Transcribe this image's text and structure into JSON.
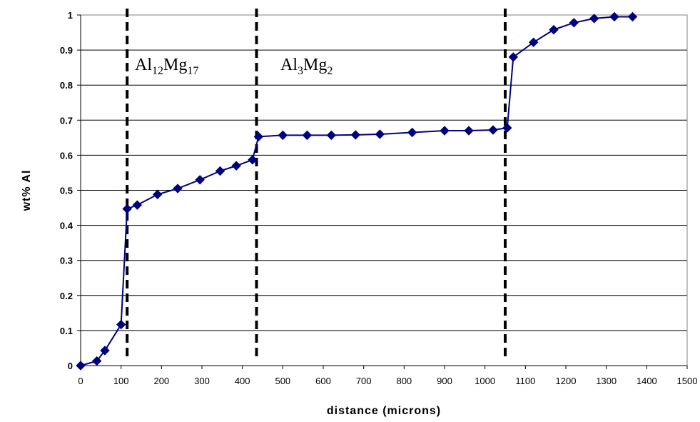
{
  "chart_data": {
    "type": "line",
    "xlabel": "distance (microns)",
    "ylabel": "wt% Al",
    "xlim": [
      0,
      1500
    ],
    "ylim": [
      0,
      1
    ],
    "x_ticks": [
      "0",
      "100",
      "200",
      "300",
      "400",
      "500",
      "600",
      "700",
      "800",
      "900",
      "1000",
      "1100",
      "1200",
      "1300",
      "1400",
      "1500"
    ],
    "y_ticks": [
      "0",
      "0.1",
      "0.2",
      "0.3",
      "0.4",
      "0.5",
      "0.6",
      "0.7",
      "0.8",
      "0.9",
      "1"
    ],
    "grid": "horizontal",
    "series": [
      {
        "color": "#00007f",
        "marker": "diamond",
        "x": [
          0,
          40,
          60,
          100,
          115,
          140,
          190,
          240,
          295,
          345,
          385,
          425,
          440,
          500,
          560,
          620,
          680,
          740,
          820,
          900,
          960,
          1020,
          1055,
          1070,
          1120,
          1170,
          1220,
          1270,
          1320,
          1365
        ],
        "y": [
          0,
          0.013,
          0.043,
          0.117,
          0.447,
          0.458,
          0.488,
          0.505,
          0.53,
          0.555,
          0.57,
          0.587,
          0.653,
          0.657,
          0.657,
          0.657,
          0.658,
          0.66,
          0.665,
          0.67,
          0.67,
          0.672,
          0.678,
          0.88,
          0.922,
          0.958,
          0.978,
          0.99,
          0.995,
          0.995
        ]
      }
    ],
    "boundaries": [
      115,
      435,
      1050
    ],
    "phase_labels": [
      {
        "base": "Al",
        "sub1": "12",
        "mid": "Mg",
        "sub2": "17",
        "x": 120
      },
      {
        "base": "Al",
        "sub1": "3",
        "mid": "Mg",
        "sub2": "2",
        "x": 480
      }
    ],
    "colors": {
      "line": "#00007f",
      "marker": "#00007f",
      "boundary": "#000000",
      "grid": "#000000"
    }
  }
}
